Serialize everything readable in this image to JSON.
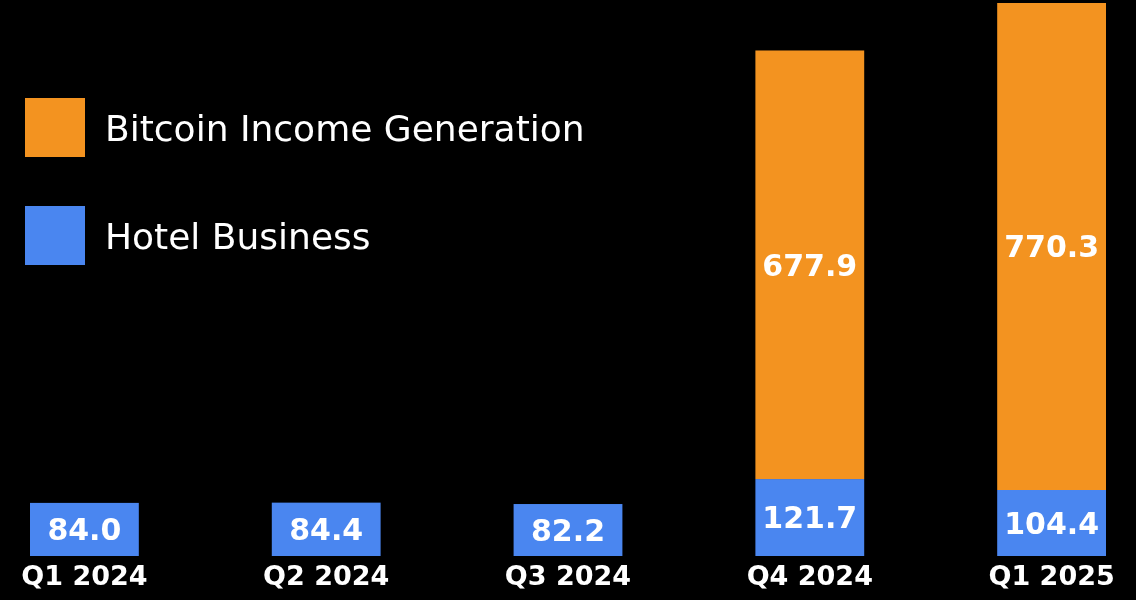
{
  "chart_data": {
    "type": "bar",
    "stacked": true,
    "categories": [
      "Q1 2024",
      "Q2 2024",
      "Q3 2024",
      "Q4 2024",
      "Q1 2025"
    ],
    "series": [
      {
        "name": "Hotel Business",
        "color": "#4a86f0",
        "values": [
          84.0,
          84.4,
          82.2,
          121.7,
          104.4
        ],
        "value_labels": [
          "84.0",
          "84.4",
          "82.2",
          "121.7",
          "104.4"
        ]
      },
      {
        "name": "Bitcoin Income Generation",
        "color": "#f39320",
        "values": [
          null,
          null,
          null,
          677.9,
          770.3
        ],
        "value_labels": [
          null,
          null,
          null,
          "677.9",
          "770.3"
        ]
      }
    ],
    "legend": "top left"
  }
}
